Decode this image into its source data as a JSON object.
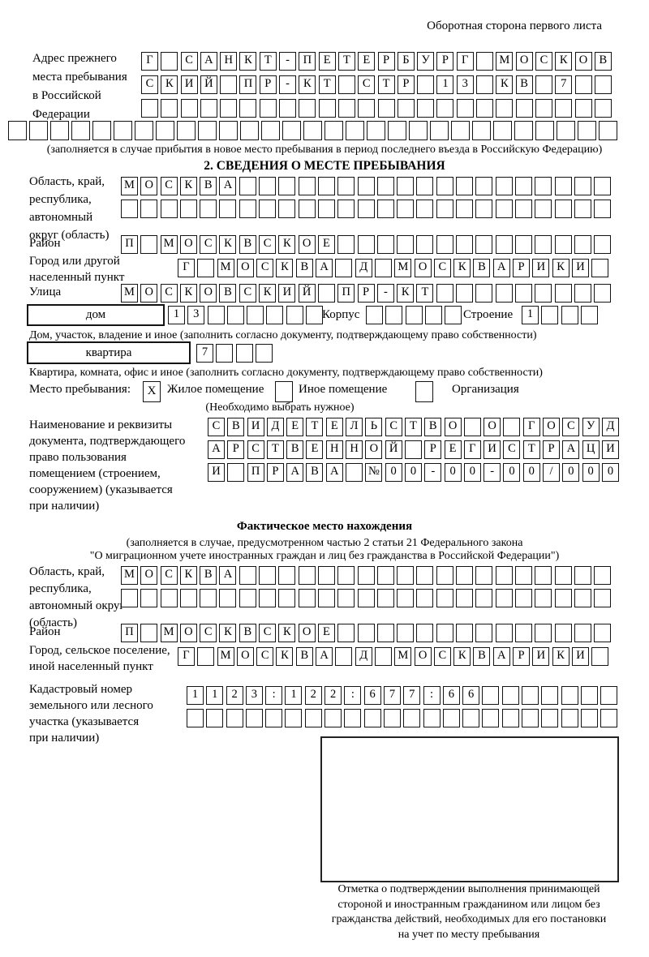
{
  "header": {
    "back_note": "Оборотная сторона первого листа"
  },
  "prev_address": {
    "label_lines": [
      "Адрес прежнего",
      "места пребывания",
      "в Российской",
      "Федерации"
    ],
    "rows": [
      {
        "text": "Г САНКТ-ПЕТЕРБУРГ МОСКОВ",
        "len": 24
      },
      {
        "text": "СКИЙ ПР-КТ СТР 13 КВ 7",
        "len": 24
      },
      {
        "text": "",
        "len": 24
      },
      {
        "text": "",
        "len": 29
      }
    ],
    "note": "(заполняется в случае прибытия в новое место пребывания в период последнего въезда в Российскую Федерацию)"
  },
  "section2": {
    "title": "2. СВЕДЕНИЯ О МЕСТЕ ПРЕБЫВАНИЯ",
    "oblast": {
      "label_lines": [
        "Область, край,",
        "республика,",
        "автономный",
        "округ (область)"
      ],
      "rows": [
        {
          "text": "МОСКВА",
          "len": 25
        },
        {
          "text": "",
          "len": 25
        }
      ]
    },
    "raion": {
      "label": "Район",
      "row": {
        "text": "П МОСКВСКОЕ",
        "len": 25
      }
    },
    "gorod": {
      "label_lines": [
        "Город или другой",
        "населенный пункт"
      ],
      "row": {
        "text": "Г МОСКВА Д МОСКВАРИКИ",
        "len": 22
      }
    },
    "ulitsa": {
      "label": "Улица",
      "row": {
        "text": "МОСКОВСКИЙ ПР-КТ",
        "len": 25
      }
    },
    "dom": {
      "box_label": "дом",
      "cells": {
        "text": "13",
        "len": 8
      },
      "korpus_label": "Корпус",
      "korpus_cells": {
        "text": "",
        "len": 5
      },
      "stroenie_label": "Строение",
      "stroenie_cells": {
        "text": "1",
        "len": 4
      },
      "note": "Дом, участок, владение и иное (заполнить согласно документу, подтверждающему право собственности)"
    },
    "kvartira": {
      "box_label": "квартира",
      "cells": {
        "text": "7",
        "len": 4
      },
      "note": "Квартира, комната, офис и иное (заполнить согласно документу, подтверждающему право собственности)"
    },
    "mesto": {
      "label": "Место пребывания:",
      "options": [
        {
          "label": "Жилое помещение",
          "mark": "X"
        },
        {
          "label": "Иное помещение",
          "mark": ""
        },
        {
          "label": "Организация",
          "mark": ""
        }
      ],
      "note": "(Необходимо выбрать нужное)"
    },
    "doc": {
      "label_lines": [
        "Наименование и реквизиты",
        "документа, подтверждающего",
        "право пользования",
        "помещением (строением,",
        "сооружением) (указывается",
        "при наличии)"
      ],
      "rows": [
        {
          "text": "СВИДЕТЕЛЬСТВО О ГОСУД",
          "len": 21
        },
        {
          "text": "АРСТВЕННОЙ РЕГИСТРАЦИ",
          "len": 21
        },
        {
          "text": "И ПРАВА №00-00-00/000",
          "len": 21
        }
      ]
    }
  },
  "fact": {
    "title": "Фактическое место нахождения",
    "note_lines": [
      "(заполняется в случае, предусмотренном частью 2 статьи 21 Федерального закона",
      "\"О миграционном учете иностранных граждан и лиц без гражданства в Российской Федерации\")"
    ],
    "oblast": {
      "label_lines": [
        "Область, край,",
        "республика,",
        "автономный округ",
        "(область)"
      ],
      "rows": [
        {
          "text": "МОСКВА",
          "len": 25
        },
        {
          "text": "",
          "len": 25
        }
      ]
    },
    "raion": {
      "label": "Район",
      "row": {
        "text": "П МОСКВСКОЕ",
        "len": 25
      }
    },
    "gorod": {
      "label_lines": [
        "Город, сельское поселение,",
        "иной населенный пункт"
      ],
      "row": {
        "text": "Г МОСКВА Д МОСКВАРИКИ",
        "len": 22
      }
    },
    "kadastr": {
      "label_lines": [
        "Кадастровый номер",
        "земельного или лесного",
        "участка (указывается",
        "при наличии)"
      ],
      "rows": [
        {
          "text": "1123:122:677:66",
          "len": 22
        },
        {
          "text": "",
          "len": 22
        }
      ]
    },
    "stamp_caption_lines": [
      "Отметка о подтверждении выполнения принимающей",
      "стороной и иностранным гражданином или лицом без",
      "гражданства действий, необходимых для его постановки",
      "на учет по месту пребывания"
    ]
  }
}
